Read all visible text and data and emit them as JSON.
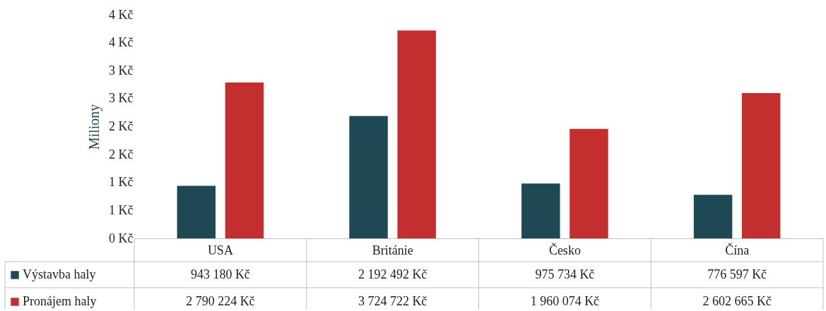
{
  "chart_data": {
    "type": "bar",
    "ylabel": "Miliony",
    "categories": [
      "USA",
      "Británie",
      "Česko",
      "Čína"
    ],
    "ylim": [
      0,
      4
    ],
    "yticks": [
      {
        "value": 0,
        "label": "0 Kč"
      },
      {
        "value": 0.5,
        "label": "1 Kč"
      },
      {
        "value": 1,
        "label": "1 Kč"
      },
      {
        "value": 1.5,
        "label": "2 Kč"
      },
      {
        "value": 2,
        "label": "2 Kč"
      },
      {
        "value": 2.5,
        "label": "3 Kč"
      },
      {
        "value": 3,
        "label": "3 Kč"
      },
      {
        "value": 3.5,
        "label": "4 Kč"
      },
      {
        "value": 4,
        "label": "4 Kč"
      }
    ],
    "legend": "bottom",
    "series": [
      {
        "name": "Výstavba haly",
        "color": "#1e4854",
        "values": [
          0.94,
          2.19,
          0.98,
          0.78
        ]
      },
      {
        "name": "Pronájem haly",
        "color": "#c32e2f",
        "values": [
          2.79,
          3.72,
          1.96,
          2.6
        ]
      }
    ],
    "annotations": [
      "943 180 Kč",
      "2 192 492 Kč",
      "975 734 Kč",
      "776 597 Kč",
      "2 790 224 Kč",
      "3 724 722 Kč",
      "1 960 074 Kč",
      "2 602 665 Kč"
    ]
  }
}
